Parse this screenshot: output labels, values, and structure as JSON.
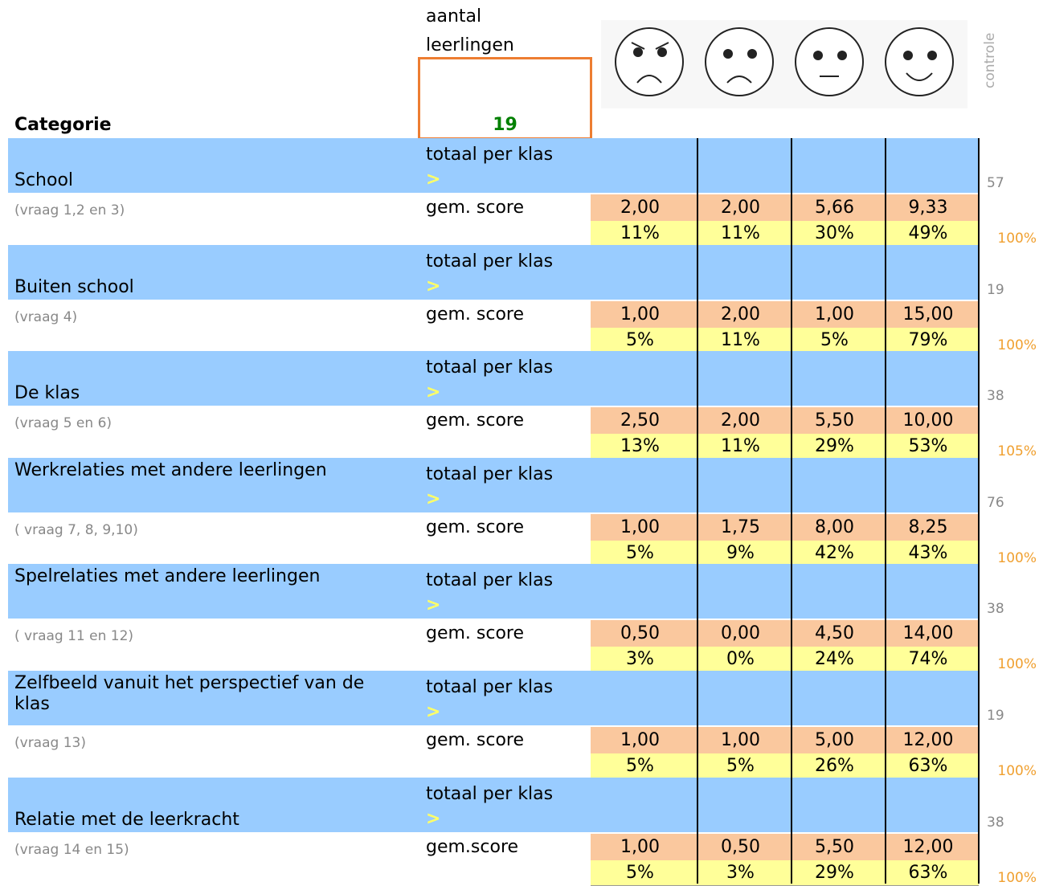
{
  "header": {
    "count_label_1": "aantal",
    "count_label_2": "leerlingen",
    "count": "19",
    "category_label": "Categorie",
    "check_label": "controle"
  },
  "categories": [
    {
      "name": "School",
      "questions": "(vraag 1,2 en 3)",
      "total_label": "totaal per klas",
      "arrow": ">",
      "score_label": "gem. score",
      "scores": [
        "2,00",
        "2,00",
        "5,66",
        "9,33"
      ],
      "percents": [
        "11%",
        "11%",
        "30%",
        "49%"
      ],
      "check_total": "57",
      "check_percent": "100%"
    },
    {
      "name": "Buiten school",
      "questions": "(vraag 4)",
      "total_label": "totaal per klas",
      "arrow": ">",
      "score_label": "gem. score",
      "scores": [
        "1,00",
        "2,00",
        "1,00",
        "15,00"
      ],
      "percents": [
        "5%",
        "11%",
        "5%",
        "79%"
      ],
      "check_total": "19",
      "check_percent": "100%"
    },
    {
      "name": "De klas",
      "questions": "(vraag 5 en 6)",
      "total_label": "totaal per klas",
      "arrow": ">",
      "score_label": "gem. score",
      "scores": [
        "2,50",
        "2,00",
        "5,50",
        "10,00"
      ],
      "percents": [
        "13%",
        "11%",
        "29%",
        "53%"
      ],
      "check_total": "38",
      "check_percent": "105%"
    },
    {
      "name": "Werkrelaties met andere leerlingen",
      "questions": "( vraag 7, 8, 9,10)",
      "total_label": "totaal per klas",
      "arrow": ">",
      "score_label": "gem. score",
      "scores": [
        "1,00",
        "1,75",
        "8,00",
        "8,25"
      ],
      "percents": [
        "5%",
        "9%",
        "42%",
        "43%"
      ],
      "check_total": "76",
      "check_percent": "100%"
    },
    {
      "name": "Spelrelaties met andere leerlingen",
      "questions": "( vraag 11 en 12)",
      "total_label": "totaal per klas",
      "arrow": ">",
      "score_label": "gem. score",
      "scores": [
        "0,50",
        "0,00",
        "4,50",
        "14,00"
      ],
      "percents": [
        "3%",
        "0%",
        "24%",
        "74%"
      ],
      "check_total": "38",
      "check_percent": "100%"
    },
    {
      "name": "Zelfbeeld vanuit het perspectief van de klas",
      "questions": "(vraag 13)",
      "total_label": "totaal per klas",
      "arrow": ">",
      "score_label": "gem. score",
      "scores": [
        "1,00",
        "1,00",
        "5,00",
        "12,00"
      ],
      "percents": [
        "5%",
        "5%",
        "26%",
        "63%"
      ],
      "check_total": "19",
      "check_percent": "100%"
    },
    {
      "name": "Relatie met de leerkracht",
      "questions": "(vraag 14 en 15)",
      "total_label": "totaal per klas",
      "arrow": ">",
      "score_label": "gem.score",
      "scores": [
        "1,00",
        "0,50",
        "5,50",
        "12,00"
      ],
      "percents": [
        "5%",
        "3%",
        "29%",
        "63%"
      ],
      "check_total": "38",
      "check_percent": "100%"
    }
  ]
}
